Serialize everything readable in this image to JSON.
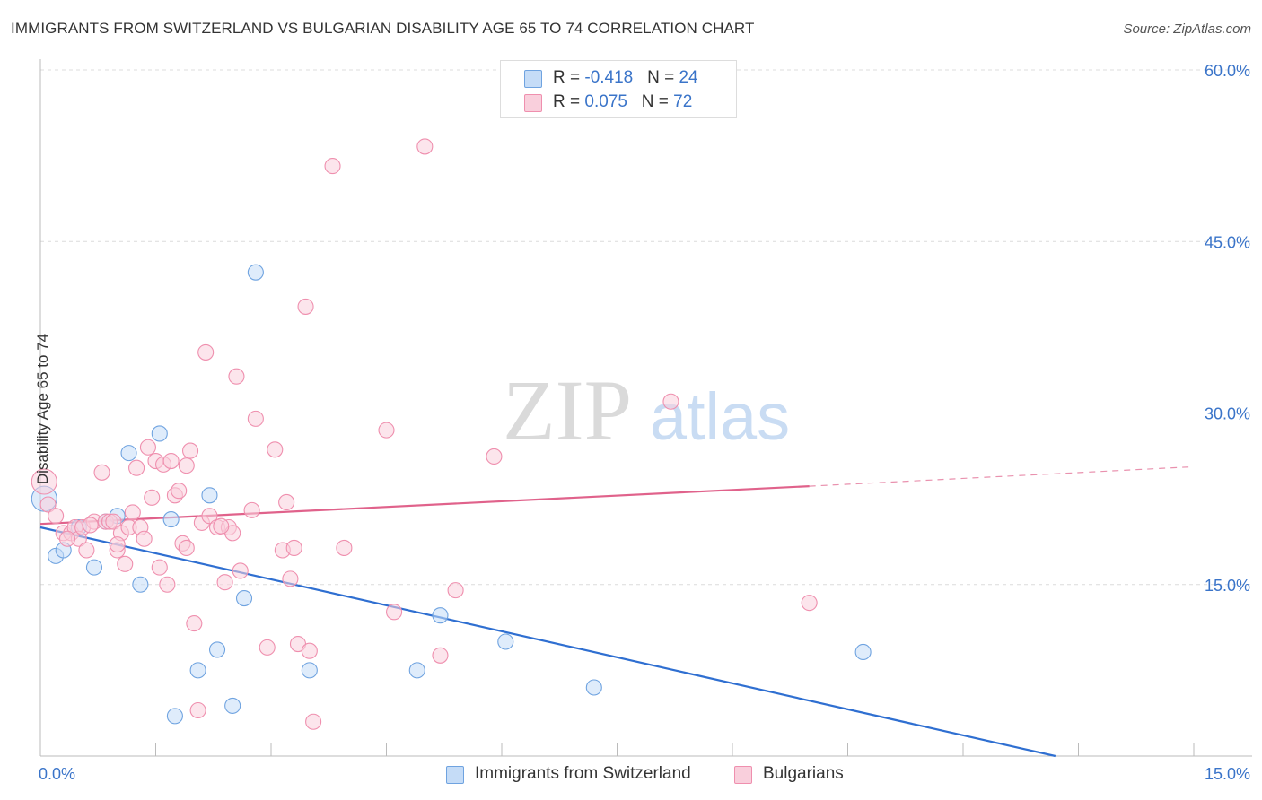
{
  "title": "IMMIGRANTS FROM SWITZERLAND VS BULGARIAN DISABILITY AGE 65 TO 74 CORRELATION CHART",
  "source": "Source: ZipAtlas.com",
  "watermark": {
    "zip": "ZIP",
    "atlas": "atlas"
  },
  "legend": {
    "rows": [
      {
        "r_label": "R = ",
        "r_value": "-0.418",
        "n_label": "N = ",
        "n_value": "24",
        "color": "#a8c8f0"
      },
      {
        "r_label": "R = ",
        "r_value": "0.075",
        "n_label": "N = ",
        "n_value": "72",
        "color": "#f6b8cc"
      }
    ]
  },
  "bottom_legend": [
    {
      "label": "Immigrants from Switzerland",
      "color": "#a8c8f0"
    },
    {
      "label": "Bulgarians",
      "color": "#f6b8cc"
    }
  ],
  "chart_data": {
    "type": "scatter",
    "xlabel": "",
    "ylabel": "Disability Age 65 to 74",
    "xlim": [
      0,
      15
    ],
    "ylim": [
      0,
      60
    ],
    "x_tick_labels": [
      "0.0%",
      "15.0%"
    ],
    "y_tick_labels": [
      "15.0%",
      "30.0%",
      "45.0%",
      "60.0%"
    ],
    "y_ticks": [
      15,
      30,
      45,
      60
    ],
    "grid": true,
    "series": [
      {
        "name": "Immigrants from Switzerland",
        "color": "#6fa3e0",
        "fill": "#c5dcf7",
        "line_color": "#2f6fd1",
        "trend": {
          "x0": 0.0,
          "y0": 20.0,
          "x1": 13.2,
          "y1": 0.0
        },
        "points": [
          [
            0.05,
            22.5
          ],
          [
            0.2,
            17.5
          ],
          [
            0.3,
            18.0
          ],
          [
            0.5,
            20.0
          ],
          [
            0.7,
            16.5
          ],
          [
            0.85,
            20.5
          ],
          [
            1.0,
            21.0
          ],
          [
            1.15,
            26.5
          ],
          [
            1.3,
            15.0
          ],
          [
            1.55,
            28.2
          ],
          [
            1.7,
            20.7
          ],
          [
            1.75,
            3.5
          ],
          [
            2.05,
            7.5
          ],
          [
            2.2,
            22.8
          ],
          [
            2.3,
            9.3
          ],
          [
            2.5,
            4.4
          ],
          [
            2.65,
            13.8
          ],
          [
            2.8,
            42.3
          ],
          [
            3.5,
            7.5
          ],
          [
            4.9,
            7.5
          ],
          [
            5.2,
            12.3
          ],
          [
            6.05,
            10.0
          ],
          [
            7.2,
            6.0
          ],
          [
            10.7,
            9.1
          ]
        ]
      },
      {
        "name": "Bulgarians",
        "color": "#ef8fae",
        "fill": "#f9cfdc",
        "line_color": "#e0628b",
        "trend": {
          "x0": 0.0,
          "y0": 20.3,
          "x1": 10.0,
          "y1": 23.6
        },
        "trend_extension": {
          "x0": 10.0,
          "y0": 23.6,
          "x1": 15.0,
          "y1": 25.3
        },
        "points": [
          [
            0.05,
            24.0
          ],
          [
            0.1,
            22.0
          ],
          [
            0.2,
            21.0
          ],
          [
            0.3,
            19.5
          ],
          [
            0.4,
            19.5
          ],
          [
            0.45,
            20.0
          ],
          [
            0.5,
            19.0
          ],
          [
            0.55,
            20.0
          ],
          [
            0.6,
            18.0
          ],
          [
            0.7,
            20.5
          ],
          [
            0.8,
            24.8
          ],
          [
            0.85,
            20.5
          ],
          [
            0.9,
            20.5
          ],
          [
            0.95,
            20.5
          ],
          [
            1.0,
            18.0
          ],
          [
            1.05,
            19.5
          ],
          [
            1.1,
            16.8
          ],
          [
            1.15,
            20.0
          ],
          [
            1.2,
            21.3
          ],
          [
            1.25,
            25.2
          ],
          [
            1.3,
            20.0
          ],
          [
            1.35,
            19.0
          ],
          [
            1.4,
            27.0
          ],
          [
            1.5,
            25.8
          ],
          [
            1.55,
            16.5
          ],
          [
            1.6,
            25.5
          ],
          [
            1.65,
            15.0
          ],
          [
            1.7,
            25.8
          ],
          [
            1.75,
            22.8
          ],
          [
            1.8,
            23.2
          ],
          [
            1.85,
            18.6
          ],
          [
            1.9,
            18.2
          ],
          [
            1.95,
            26.7
          ],
          [
            2.0,
            11.6
          ],
          [
            2.05,
            4.0
          ],
          [
            2.1,
            20.4
          ],
          [
            2.15,
            35.3
          ],
          [
            2.2,
            21.0
          ],
          [
            2.3,
            20.0
          ],
          [
            2.4,
            15.2
          ],
          [
            2.45,
            20.0
          ],
          [
            2.5,
            19.5
          ],
          [
            2.55,
            33.2
          ],
          [
            2.6,
            16.2
          ],
          [
            2.75,
            21.5
          ],
          [
            2.8,
            29.5
          ],
          [
            2.95,
            9.5
          ],
          [
            3.05,
            26.8
          ],
          [
            3.15,
            18.0
          ],
          [
            3.2,
            22.2
          ],
          [
            3.25,
            15.5
          ],
          [
            3.3,
            18.2
          ],
          [
            3.35,
            9.8
          ],
          [
            3.45,
            39.3
          ],
          [
            3.5,
            9.2
          ],
          [
            3.55,
            3.0
          ],
          [
            3.8,
            51.6
          ],
          [
            3.95,
            18.2
          ],
          [
            4.5,
            28.5
          ],
          [
            4.6,
            12.6
          ],
          [
            5.0,
            53.3
          ],
          [
            5.2,
            8.8
          ],
          [
            5.4,
            14.5
          ],
          [
            5.9,
            26.2
          ],
          [
            8.2,
            31.0
          ],
          [
            10.0,
            13.4
          ],
          [
            1.0,
            18.5
          ],
          [
            0.65,
            20.2
          ],
          [
            1.45,
            22.6
          ],
          [
            2.35,
            20.1
          ],
          [
            0.35,
            19.0
          ],
          [
            1.9,
            25.4
          ]
        ]
      }
    ]
  }
}
